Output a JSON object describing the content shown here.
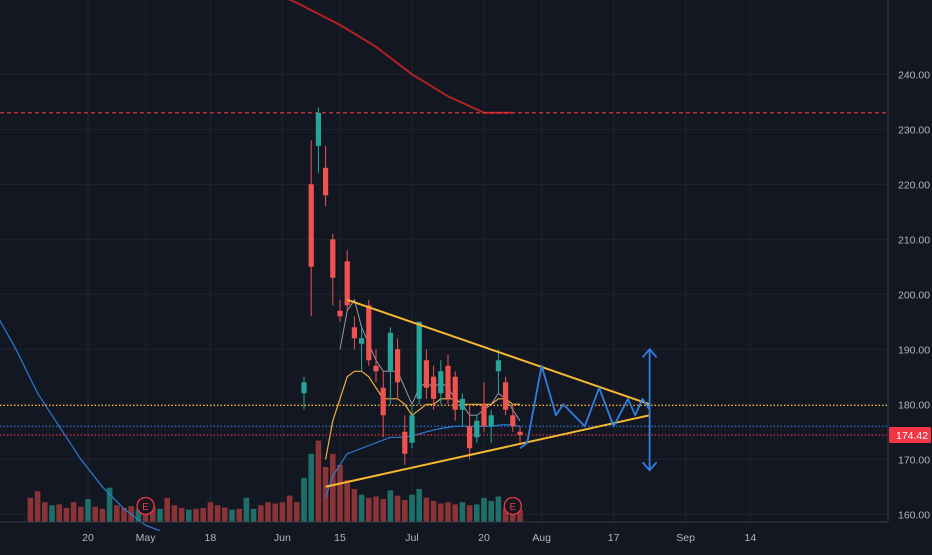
{
  "colors": {
    "background": "#131722",
    "grid": "#1f2430",
    "axis_text": "#b2b5be",
    "candle_up": "#26a69a",
    "candle_down": "#ef5350",
    "vol_up": "#1e6f68",
    "vol_down": "#8a3438",
    "sma_long": "#b22222",
    "ma_fast": "#9598a1",
    "ma_mid": "#f0b040",
    "ma_slow": "#2a7bd4",
    "triangle": "#f5b82e",
    "projection": "#2f7fe0",
    "price_badge": "#f23645",
    "earnings": "#f23645"
  },
  "chart_data": {
    "type": "candlestick",
    "y_axis": {
      "ticks": [
        "160.00",
        "170.00",
        "180.00",
        "190.00",
        "200.00",
        "210.00",
        "220.00",
        "230.00",
        "240.00"
      ],
      "tick_values": [
        160,
        170,
        180,
        190,
        200,
        210,
        220,
        230,
        240
      ],
      "range": [
        157.5,
        254
      ]
    },
    "x_axis": {
      "labels": [
        "20",
        "May",
        "18",
        "Jun",
        "15",
        "Jul",
        "20",
        "Aug",
        "17",
        "Sep",
        "14"
      ],
      "label_sessions": [
        -35,
        -27,
        -18,
        -8,
        0,
        10,
        20,
        28,
        38,
        48,
        57
      ]
    },
    "last_price": "174.42",
    "horizontal_levels": [
      {
        "name": "resistance-dashed",
        "value": 233.0,
        "style": "dashed",
        "color": "#f23645"
      },
      {
        "name": "orange-dotted",
        "value": 179.8,
        "style": "dotted",
        "color": "#f5b82e"
      },
      {
        "name": "blue-dotted",
        "value": 176.0,
        "style": "dotted",
        "color": "#2a7bd4"
      },
      {
        "name": "last-price-dotted",
        "value": 174.42,
        "style": "dotted",
        "color": "#f23645"
      }
    ],
    "earnings_markers": [
      {
        "label": "E",
        "session": -27
      },
      {
        "label": "E",
        "session": 24
      }
    ],
    "candles": [
      {
        "s": -5,
        "o": 182,
        "h": 185,
        "l": 179,
        "c": 184
      },
      {
        "s": -4,
        "o": 220,
        "h": 228,
        "l": 196,
        "c": 205
      },
      {
        "s": -3,
        "o": 227,
        "h": 234,
        "l": 222,
        "c": 233
      },
      {
        "s": -2,
        "o": 223,
        "h": 227,
        "l": 216,
        "c": 218
      },
      {
        "s": -1,
        "o": 210,
        "h": 211,
        "l": 198,
        "c": 203
      },
      {
        "s": 0,
        "o": 197,
        "h": 199,
        "l": 195,
        "c": 196
      },
      {
        "s": 1,
        "o": 206,
        "h": 208,
        "l": 197,
        "c": 198
      },
      {
        "s": 2,
        "o": 194,
        "h": 196,
        "l": 190,
        "c": 192
      },
      {
        "s": 3,
        "o": 191,
        "h": 194,
        "l": 186,
        "c": 192
      },
      {
        "s": 4,
        "o": 198,
        "h": 199,
        "l": 187,
        "c": 188
      },
      {
        "s": 5,
        "o": 187,
        "h": 190,
        "l": 184,
        "c": 186
      },
      {
        "s": 6,
        "o": 183,
        "h": 186,
        "l": 174,
        "c": 178
      },
      {
        "s": 7,
        "o": 186,
        "h": 194,
        "l": 180,
        "c": 193
      },
      {
        "s": 8,
        "o": 190,
        "h": 192,
        "l": 181,
        "c": 184
      },
      {
        "s": 9,
        "o": 175,
        "h": 178,
        "l": 169,
        "c": 171
      },
      {
        "s": 10,
        "o": 173,
        "h": 180,
        "l": 172,
        "c": 178
      },
      {
        "s": 11,
        "o": 181,
        "h": 195,
        "l": 180,
        "c": 195
      },
      {
        "s": 12,
        "o": 188,
        "h": 190,
        "l": 181,
        "c": 183
      },
      {
        "s": 13,
        "o": 185,
        "h": 187,
        "l": 179,
        "c": 181
      },
      {
        "s": 14,
        "o": 182,
        "h": 188,
        "l": 180,
        "c": 186
      },
      {
        "s": 15,
        "o": 187,
        "h": 189,
        "l": 180,
        "c": 181
      },
      {
        "s": 16,
        "o": 185,
        "h": 186,
        "l": 177,
        "c": 179
      },
      {
        "s": 17,
        "o": 179,
        "h": 182,
        "l": 176,
        "c": 181
      },
      {
        "s": 18,
        "o": 176,
        "h": 180,
        "l": 170,
        "c": 172
      },
      {
        "s": 19,
        "o": 174,
        "h": 178,
        "l": 173,
        "c": 177
      },
      {
        "s": 20,
        "o": 180,
        "h": 184,
        "l": 175,
        "c": 176
      },
      {
        "s": 21,
        "o": 176,
        "h": 179,
        "l": 173,
        "c": 178
      },
      {
        "s": 22,
        "o": 186,
        "h": 190,
        "l": 182,
        "c": 188
      },
      {
        "s": 23,
        "o": 184,
        "h": 185,
        "l": 178,
        "c": 179
      },
      {
        "s": 24,
        "o": 178,
        "h": 180,
        "l": 175,
        "c": 176
      },
      {
        "s": 25,
        "o": 175,
        "h": 176,
        "l": 173,
        "c": 174.42
      }
    ],
    "volume": [
      {
        "s": -43,
        "v": 0.55,
        "dir": "down"
      },
      {
        "s": -42,
        "v": 0.7,
        "dir": "down"
      },
      {
        "s": -41,
        "v": 0.45,
        "dir": "down"
      },
      {
        "s": -40,
        "v": 0.38,
        "dir": "up"
      },
      {
        "s": -39,
        "v": 0.4,
        "dir": "down"
      },
      {
        "s": -38,
        "v": 0.32,
        "dir": "down"
      },
      {
        "s": -37,
        "v": 0.45,
        "dir": "down"
      },
      {
        "s": -36,
        "v": 0.35,
        "dir": "down"
      },
      {
        "s": -35,
        "v": 0.52,
        "dir": "up"
      },
      {
        "s": -34,
        "v": 0.35,
        "dir": "down"
      },
      {
        "s": -33,
        "v": 0.3,
        "dir": "down"
      },
      {
        "s": -32,
        "v": 0.78,
        "dir": "up"
      },
      {
        "s": -31,
        "v": 0.38,
        "dir": "down"
      },
      {
        "s": -30,
        "v": 0.32,
        "dir": "down"
      },
      {
        "s": -29,
        "v": 0.36,
        "dir": "down"
      },
      {
        "s": -28,
        "v": 0.3,
        "dir": "up"
      },
      {
        "s": -27,
        "v": 0.28,
        "dir": "down"
      },
      {
        "s": -26,
        "v": 0.35,
        "dir": "down"
      },
      {
        "s": -25,
        "v": 0.3,
        "dir": "up"
      },
      {
        "s": -24,
        "v": 0.55,
        "dir": "down"
      },
      {
        "s": -23,
        "v": 0.38,
        "dir": "down"
      },
      {
        "s": -22,
        "v": 0.32,
        "dir": "down"
      },
      {
        "s": -21,
        "v": 0.28,
        "dir": "up"
      },
      {
        "s": -20,
        "v": 0.3,
        "dir": "down"
      },
      {
        "s": -19,
        "v": 0.32,
        "dir": "down"
      },
      {
        "s": -18,
        "v": 0.45,
        "dir": "down"
      },
      {
        "s": -17,
        "v": 0.38,
        "dir": "down"
      },
      {
        "s": -16,
        "v": 0.33,
        "dir": "down"
      },
      {
        "s": -15,
        "v": 0.28,
        "dir": "up"
      },
      {
        "s": -14,
        "v": 0.3,
        "dir": "down"
      },
      {
        "s": -13,
        "v": 0.55,
        "dir": "up"
      },
      {
        "s": -12,
        "v": 0.3,
        "dir": "up"
      },
      {
        "s": -11,
        "v": 0.38,
        "dir": "down"
      },
      {
        "s": -10,
        "v": 0.45,
        "dir": "down"
      },
      {
        "s": -9,
        "v": 0.42,
        "dir": "down"
      },
      {
        "s": -8,
        "v": 0.45,
        "dir": "down"
      },
      {
        "s": -7,
        "v": 0.6,
        "dir": "down"
      },
      {
        "s": -6,
        "v": 0.45,
        "dir": "down"
      },
      {
        "s": -5,
        "v": 1.0,
        "dir": "up"
      },
      {
        "s": -4,
        "v": 1.55,
        "dir": "up"
      },
      {
        "s": -3,
        "v": 1.85,
        "dir": "down"
      },
      {
        "s": -2,
        "v": 1.25,
        "dir": "down"
      },
      {
        "s": -1,
        "v": 1.55,
        "dir": "down"
      },
      {
        "s": 0,
        "v": 1.3,
        "dir": "down"
      },
      {
        "s": 1,
        "v": 0.95,
        "dir": "down"
      },
      {
        "s": 2,
        "v": 0.75,
        "dir": "down"
      },
      {
        "s": 3,
        "v": 0.62,
        "dir": "up"
      },
      {
        "s": 4,
        "v": 0.55,
        "dir": "down"
      },
      {
        "s": 5,
        "v": 0.58,
        "dir": "down"
      },
      {
        "s": 6,
        "v": 0.52,
        "dir": "down"
      },
      {
        "s": 7,
        "v": 0.72,
        "dir": "up"
      },
      {
        "s": 8,
        "v": 0.6,
        "dir": "down"
      },
      {
        "s": 9,
        "v": 0.5,
        "dir": "down"
      },
      {
        "s": 10,
        "v": 0.62,
        "dir": "up"
      },
      {
        "s": 11,
        "v": 0.75,
        "dir": "up"
      },
      {
        "s": 12,
        "v": 0.55,
        "dir": "down"
      },
      {
        "s": 13,
        "v": 0.48,
        "dir": "down"
      },
      {
        "s": 14,
        "v": 0.42,
        "dir": "down"
      },
      {
        "s": 15,
        "v": 0.45,
        "dir": "down"
      },
      {
        "s": 16,
        "v": 0.4,
        "dir": "down"
      },
      {
        "s": 17,
        "v": 0.45,
        "dir": "up"
      },
      {
        "s": 18,
        "v": 0.38,
        "dir": "down"
      },
      {
        "s": 19,
        "v": 0.4,
        "dir": "up"
      },
      {
        "s": 20,
        "v": 0.55,
        "dir": "up"
      },
      {
        "s": 21,
        "v": 0.48,
        "dir": "up"
      },
      {
        "s": 22,
        "v": 0.58,
        "dir": "up"
      },
      {
        "s": 23,
        "v": 0.32,
        "dir": "down"
      },
      {
        "s": 24,
        "v": 0.3,
        "dir": "down"
      },
      {
        "s": 25,
        "v": 0.28,
        "dir": "down"
      }
    ],
    "moving_averages": [
      {
        "name": "fast",
        "points": [
          [
            0,
            190
          ],
          [
            1,
            197
          ],
          [
            2,
            199
          ],
          [
            3,
            194
          ],
          [
            4,
            191
          ],
          [
            5,
            188
          ],
          [
            6,
            186
          ],
          [
            7,
            186
          ],
          [
            8,
            186
          ],
          [
            9,
            183
          ],
          [
            10,
            180
          ],
          [
            11,
            183
          ],
          [
            12,
            184
          ],
          [
            13,
            183
          ],
          [
            14,
            184
          ],
          [
            15,
            183
          ],
          [
            16,
            181
          ],
          [
            17,
            180
          ],
          [
            18,
            178
          ],
          [
            19,
            178
          ],
          [
            20,
            179
          ],
          [
            21,
            180
          ],
          [
            22,
            182
          ],
          [
            23,
            181
          ],
          [
            24,
            179
          ],
          [
            25,
            177
          ]
        ]
      },
      {
        "name": "mid",
        "points": [
          [
            -2,
            170
          ],
          [
            -1,
            177
          ],
          [
            0,
            181
          ],
          [
            1,
            185
          ],
          [
            2,
            186
          ],
          [
            3,
            186
          ],
          [
            4,
            185
          ],
          [
            5,
            183
          ],
          [
            6,
            181
          ],
          [
            7,
            181
          ],
          [
            8,
            181
          ],
          [
            9,
            180
          ],
          [
            10,
            178
          ],
          [
            11,
            179
          ],
          [
            12,
            180
          ],
          [
            13,
            180
          ],
          [
            14,
            181
          ],
          [
            15,
            181
          ],
          [
            16,
            181
          ],
          [
            17,
            180
          ],
          [
            18,
            180
          ],
          [
            19,
            180
          ],
          [
            20,
            180
          ],
          [
            21,
            180
          ],
          [
            22,
            181
          ],
          [
            23,
            181
          ],
          [
            24,
            180
          ],
          [
            25,
            180
          ]
        ]
      },
      {
        "name": "slow",
        "points": [
          [
            -2,
            163
          ],
          [
            -1,
            167
          ],
          [
            0,
            169
          ],
          [
            1,
            171
          ],
          [
            2,
            171.5
          ],
          [
            3,
            172
          ],
          [
            4,
            172.5
          ],
          [
            5,
            173
          ],
          [
            6,
            173.5
          ],
          [
            7,
            174
          ],
          [
            8,
            174
          ],
          [
            9,
            174
          ],
          [
            10,
            174.3
          ],
          [
            11,
            174.6
          ],
          [
            12,
            175
          ],
          [
            13,
            175.3
          ],
          [
            14,
            175.6
          ],
          [
            15,
            175.8
          ],
          [
            16,
            176
          ],
          [
            17,
            176
          ],
          [
            18,
            176
          ],
          [
            19,
            176
          ],
          [
            20,
            176
          ],
          [
            21,
            176
          ],
          [
            22,
            176.2
          ],
          [
            23,
            176.3
          ],
          [
            24,
            176.2
          ],
          [
            25,
            176
          ]
        ]
      },
      {
        "name": "long-blue",
        "points": [
          [
            -48,
            197
          ],
          [
            -45,
            190
          ],
          [
            -42,
            182
          ],
          [
            -39,
            176
          ],
          [
            -36,
            170
          ],
          [
            -33,
            165
          ],
          [
            -30,
            161
          ],
          [
            -27,
            158
          ],
          [
            -25,
            157
          ]
        ]
      },
      {
        "name": "sma-red",
        "points": [
          [
            -11,
            256
          ],
          [
            -6,
            253
          ],
          [
            0,
            249
          ],
          [
            5,
            245
          ],
          [
            10,
            240
          ],
          [
            15,
            236
          ],
          [
            20,
            233
          ],
          [
            24,
            233
          ]
        ]
      }
    ],
    "triangle": {
      "upper": [
        [
          1,
          199
        ],
        [
          43,
          180
        ]
      ],
      "lower": [
        [
          -2,
          165
        ],
        [
          43,
          178
        ]
      ]
    },
    "projection_path": [
      [
        25,
        172
      ],
      [
        26,
        173
      ],
      [
        28,
        187
      ],
      [
        30,
        178
      ],
      [
        31,
        180
      ],
      [
        34,
        176
      ],
      [
        36,
        183
      ],
      [
        38,
        176
      ],
      [
        40,
        181
      ],
      [
        41,
        178
      ],
      [
        42,
        181
      ],
      [
        43,
        179
      ]
    ],
    "range_arrow": {
      "session": 43,
      "top": 190,
      "bottom": 168
    }
  }
}
